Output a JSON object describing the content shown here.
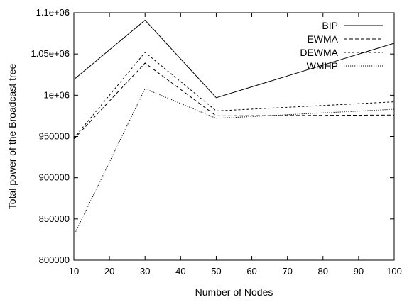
{
  "chart_data": {
    "type": "line",
    "title": "",
    "xlabel": "Number of Nodes",
    "ylabel": "Total power of the Broadcast tree",
    "xlim": [
      10,
      100
    ],
    "ylim": [
      800000,
      1100000
    ],
    "x": [
      10,
      30,
      50,
      100
    ],
    "xticks": [
      10,
      20,
      30,
      40,
      50,
      60,
      70,
      80,
      90,
      100
    ],
    "xtick_labels": [
      "10",
      "20",
      "30",
      "40",
      "50",
      "60",
      "70",
      "80",
      "90",
      "100"
    ],
    "yticks": [
      800000,
      850000,
      900000,
      950000,
      1000000,
      1050000,
      1100000
    ],
    "ytick_labels": [
      "800000",
      "850000",
      "900000",
      "950000",
      "1e+06",
      "1.05e+06",
      "1.1e+06"
    ],
    "grid": false,
    "legend_position": "top-right",
    "series": [
      {
        "name": "BIP",
        "dash": "solid",
        "values": [
          1019000,
          1091000,
          997000,
          1063000
        ]
      },
      {
        "name": "EWMA",
        "dash": "dashed",
        "values": [
          947000,
          1039000,
          975000,
          976000
        ]
      },
      {
        "name": "DEWMA",
        "dash": "short-dashed",
        "values": [
          948000,
          1052000,
          981000,
          992000
        ]
      },
      {
        "name": "WMHP",
        "dash": "dotted",
        "values": [
          830000,
          1008000,
          972000,
          983000
        ]
      }
    ]
  }
}
